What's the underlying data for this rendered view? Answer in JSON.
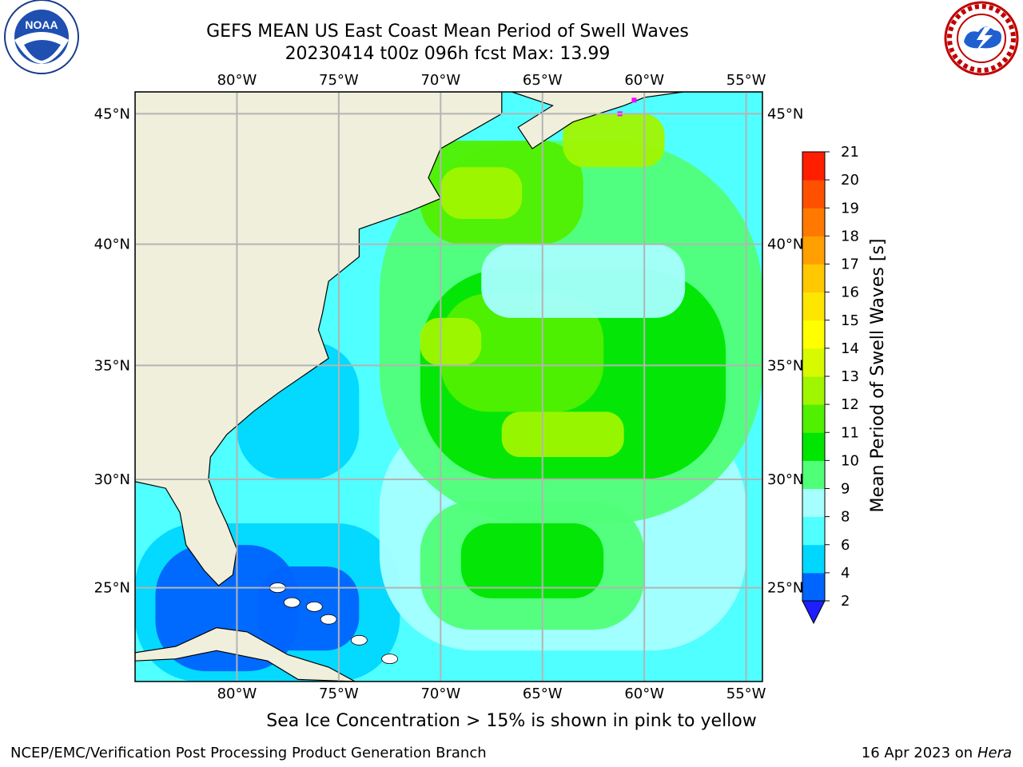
{
  "header": {
    "title_line1": "GEFS MEAN US East Coast Mean Period of Swell Waves",
    "title_line2": "20230414 t00z 096h fcst   Max: 13.99"
  },
  "logos": {
    "left": "noaa-logo",
    "left_text": "NOAA",
    "right": "national-weather-service-logo"
  },
  "map": {
    "lon_labels": [
      "80°W",
      "75°W",
      "70°W",
      "65°W",
      "60°W",
      "55°W"
    ],
    "lat_labels": [
      "45°N",
      "40°N",
      "35°N",
      "30°N",
      "25°N"
    ],
    "lon_values": [
      -80,
      -75,
      -70,
      -65,
      -60,
      -55
    ],
    "lat_values": [
      45,
      40,
      35,
      30,
      25
    ],
    "lon_range": [
      -85,
      -54.2
    ],
    "lat_range": [
      20.5,
      45.8
    ],
    "grid": true
  },
  "colorbar": {
    "label": "Mean Period of Swell Waves [s]",
    "ticks": [
      "2",
      "4",
      "6",
      "8",
      "9",
      "10",
      "11",
      "12",
      "13",
      "14",
      "15",
      "16",
      "17",
      "18",
      "19",
      "20",
      "21"
    ],
    "levels": [
      2,
      4,
      6,
      8,
      9,
      10,
      11,
      12,
      13,
      14,
      15,
      16,
      17,
      18,
      19,
      20,
      21
    ],
    "colors": [
      "#0064ff",
      "#00d7ff",
      "#50ffff",
      "#a5ffff",
      "#50ff78",
      "#00e600",
      "#50f000",
      "#a0f500",
      "#d7fa00",
      "#ffff00",
      "#ffe600",
      "#ffc800",
      "#ffa000",
      "#ff7800",
      "#ff5000",
      "#ff1e00"
    ],
    "under_color": "#1e1eff",
    "extend": "min"
  },
  "colors": {
    "land": "#efefdc",
    "grid": "#b4b4b4",
    "sea_ice": "#ff00ff"
  },
  "footer": {
    "note": "Sea Ice Concentration > 15% is shown in pink to yellow",
    "left": "NCEP/EMC/Verification Post Processing Product Generation Branch",
    "right_date": "16 Apr 2023 on ",
    "right_host": "Hera"
  }
}
